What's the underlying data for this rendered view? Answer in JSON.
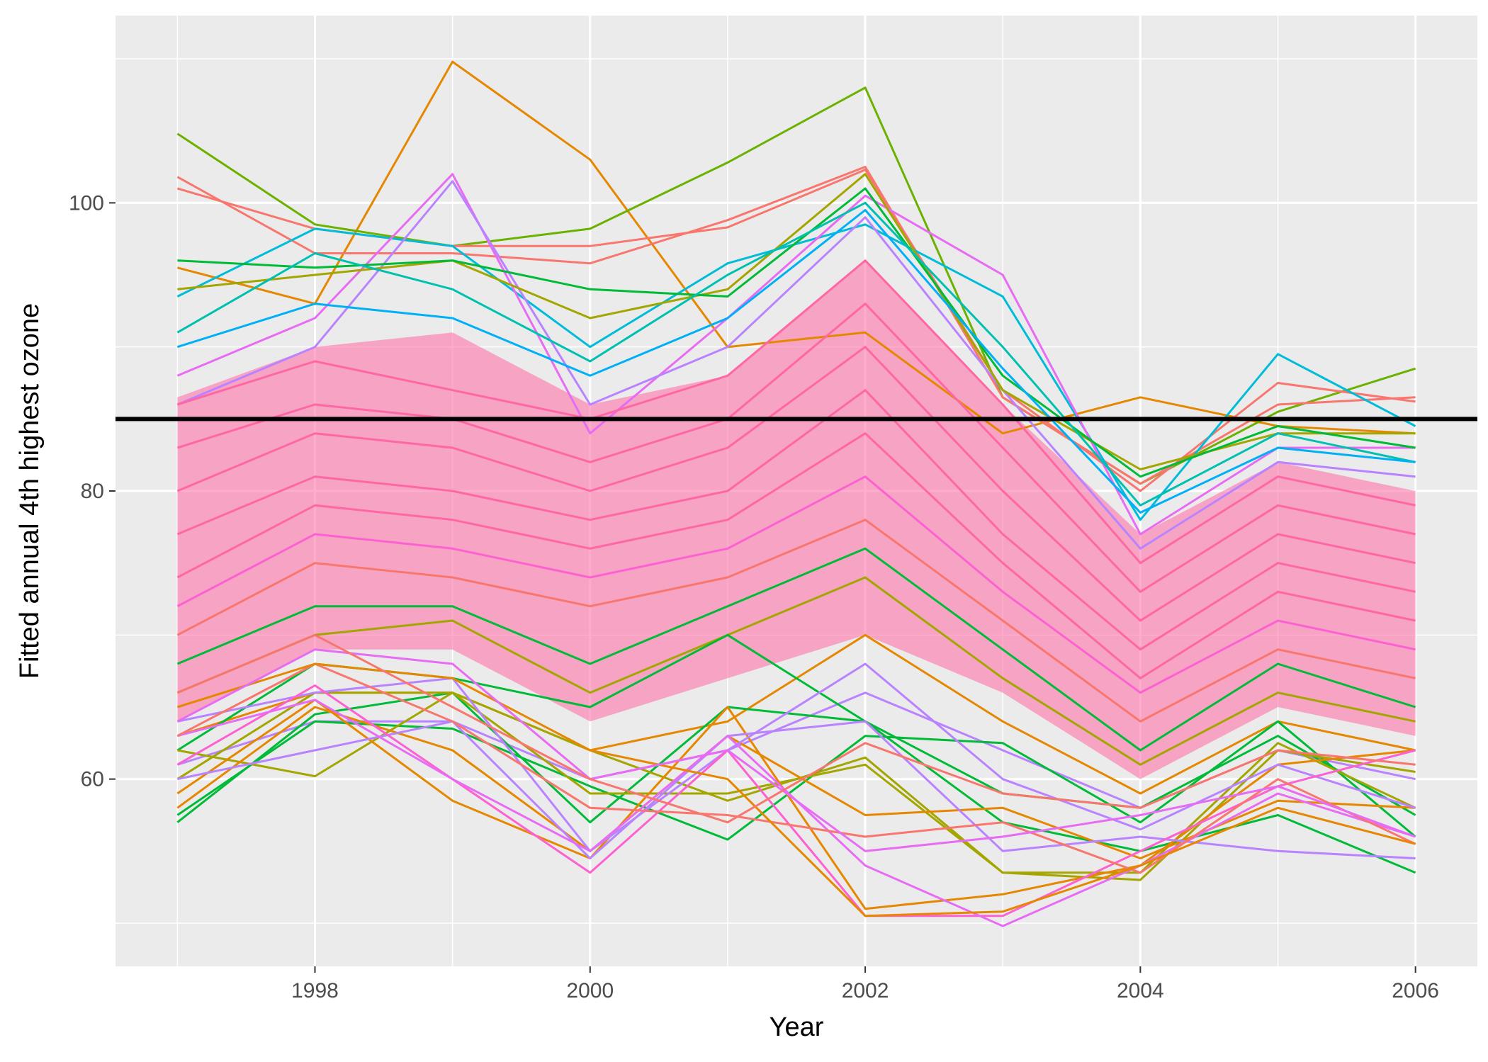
{
  "chart_data": {
    "type": "line",
    "title": "",
    "xlabel": "Year",
    "ylabel": "Fitted annual 4th highest ozone",
    "x": [
      1997,
      1998,
      1999,
      2000,
      2001,
      2002,
      2003,
      2004,
      2005,
      2006
    ],
    "xlim": [
      1996.55,
      2006.45
    ],
    "ylim": [
      47,
      113
    ],
    "x_ticks": [
      "1998",
      "2000",
      "2002",
      "2004",
      "2006"
    ],
    "y_ticks": [
      "60",
      "80",
      "100"
    ],
    "grid": true,
    "legend": "none",
    "reference_line": {
      "y": 85,
      "color": "#000000"
    },
    "colors": [
      "#F8766D",
      "#E58700",
      "#C99800",
      "#A3A500",
      "#6BB100",
      "#00BA38",
      "#00BF7D",
      "#00C0AF",
      "#00BCD8",
      "#00B0F6",
      "#619CFF",
      "#B983FF",
      "#E76BF3",
      "#FD61D1",
      "#FF67A4"
    ],
    "series": [
      {
        "color": "#E58700",
        "values": [
          95.5,
          93.0,
          109.8,
          103.0,
          90.0,
          91.0,
          84.0,
          86.5,
          84.5,
          84.0
        ]
      },
      {
        "color": "#6BB100",
        "values": [
          104.8,
          98.5,
          97.0,
          98.2,
          102.8,
          108.0,
          86.5,
          80.5,
          85.5,
          88.5
        ]
      },
      {
        "color": "#F8766D",
        "values": [
          101.0,
          98.2,
          97.0,
          97.0,
          98.3,
          102.3,
          87.0,
          80.0,
          87.5,
          86.2
        ]
      },
      {
        "color": "#F8766D",
        "values": [
          101.8,
          96.5,
          96.5,
          95.8,
          98.8,
          102.5,
          86.5,
          80.5,
          86.0,
          86.5
        ]
      },
      {
        "color": "#00BCD8",
        "values": [
          93.5,
          98.2,
          97.0,
          90.0,
          95.8,
          98.5,
          93.5,
          78.0,
          89.5,
          84.5
        ]
      },
      {
        "color": "#E76BF3",
        "values": [
          88.0,
          92.0,
          102.0,
          84.0,
          92.0,
          100.5,
          95.0,
          77.0,
          83.0,
          83.0
        ]
      },
      {
        "color": "#B983FF",
        "values": [
          86.0,
          90.0,
          101.5,
          86.0,
          90.0,
          99.0,
          87.0,
          76.0,
          82.0,
          81.0
        ]
      },
      {
        "color": "#A3A500",
        "values": [
          94.0,
          95.0,
          96.0,
          92.0,
          94.0,
          102.0,
          87.0,
          81.5,
          84.0,
          84.0
        ]
      },
      {
        "color": "#00BA38",
        "values": [
          96.0,
          95.5,
          96.0,
          94.0,
          93.5,
          101.0,
          88.0,
          81.0,
          84.5,
          83.0
        ]
      },
      {
        "color": "#00C0AF",
        "values": [
          91.0,
          96.5,
          94.0,
          89.0,
          95.0,
          100.0,
          90.0,
          79.0,
          84.0,
          82.0
        ]
      },
      {
        "color": "#00B0F6",
        "values": [
          90.0,
          93.0,
          92.0,
          88.0,
          92.0,
          99.5,
          88.5,
          78.5,
          83.0,
          82.0
        ]
      },
      {
        "color": "#FF67A4",
        "values": [
          86.0,
          89.0,
          87.0,
          85.0,
          88.0,
          96.0,
          86.0,
          75.0,
          81.0,
          79.0
        ]
      },
      {
        "color": "#FF67A4",
        "values": [
          83.0,
          86.0,
          85.0,
          82.0,
          85.0,
          93.0,
          83.0,
          73.0,
          79.0,
          77.0
        ]
      },
      {
        "color": "#FF67A4",
        "values": [
          80.0,
          84.0,
          83.0,
          80.0,
          83.0,
          90.0,
          80.0,
          71.0,
          77.0,
          75.0
        ]
      },
      {
        "color": "#FF67A4",
        "values": [
          77.0,
          81.0,
          80.0,
          78.0,
          80.0,
          87.0,
          77.0,
          69.0,
          75.0,
          73.0
        ]
      },
      {
        "color": "#FF67A4",
        "values": [
          74.0,
          79.0,
          78.0,
          76.0,
          78.0,
          84.0,
          75.0,
          67.0,
          73.0,
          71.0
        ]
      },
      {
        "color": "#FD61D1",
        "values": [
          72.0,
          77.0,
          76.0,
          74.0,
          76.0,
          81.0,
          73.0,
          66.0,
          71.0,
          69.0
        ]
      },
      {
        "color": "#F8766D",
        "values": [
          70.0,
          75.0,
          74.0,
          72.0,
          74.0,
          78.0,
          71.0,
          64.0,
          69.0,
          67.0
        ]
      },
      {
        "color": "#00BA38",
        "values": [
          68.0,
          72.0,
          72.0,
          68.0,
          72.0,
          76.0,
          69.0,
          62.0,
          68.0,
          65.0
        ]
      },
      {
        "color": "#A3A500",
        "values": [
          66.0,
          70.0,
          71.0,
          66.0,
          70.0,
          74.0,
          67.0,
          61.0,
          66.0,
          64.0
        ]
      },
      {
        "color": "#E58700",
        "values": [
          63.0,
          66.0,
          66.0,
          62.0,
          64.0,
          70.0,
          64.0,
          59.0,
          64.0,
          62.0
        ]
      },
      {
        "color": "#B983FF",
        "values": [
          61.0,
          64.0,
          64.0,
          60.0,
          62.0,
          66.0,
          62.0,
          58.0,
          62.0,
          60.0
        ]
      },
      {
        "color": "#00BA38",
        "values": [
          57.0,
          64.5,
          66.0,
          57.0,
          65.0,
          64.0,
          59.0,
          58.0,
          63.0,
          57.5
        ]
      },
      {
        "color": "#00BA38",
        "values": [
          57.5,
          64.0,
          63.5,
          59.5,
          55.8,
          63.0,
          62.5,
          57.0,
          64.0,
          56.0
        ]
      },
      {
        "color": "#00BA38",
        "values": [
          62.0,
          68.0,
          67.0,
          65.0,
          70.0,
          64.0,
          57.0,
          55.0,
          57.5,
          53.5
        ]
      },
      {
        "color": "#A3A500",
        "values": [
          62.0,
          60.2,
          66.0,
          59.0,
          59.0,
          61.0,
          53.5,
          53.0,
          62.0,
          60.5
        ]
      },
      {
        "color": "#A3A500",
        "values": [
          60.0,
          66.0,
          66.0,
          62.0,
          58.5,
          61.5,
          53.5,
          53.5,
          62.5,
          58.0
        ]
      },
      {
        "color": "#E58700",
        "values": [
          59.0,
          65.5,
          58.5,
          54.5,
          65.0,
          51.0,
          52.0,
          54.0,
          61.0,
          62.0
        ]
      },
      {
        "color": "#E58700",
        "values": [
          58.0,
          65.0,
          62.0,
          55.0,
          63.0,
          57.5,
          58.0,
          54.5,
          58.5,
          58.0
        ]
      },
      {
        "color": "#B983FF",
        "values": [
          60.0,
          62.0,
          64.0,
          54.5,
          63.0,
          64.0,
          55.0,
          56.0,
          55.0,
          54.5
        ]
      },
      {
        "color": "#B983FF",
        "values": [
          64.0,
          66.0,
          67.0,
          55.0,
          62.0,
          68.0,
          60.0,
          56.5,
          61.0,
          58.0
        ]
      },
      {
        "color": "#FD61D1",
        "values": [
          61.0,
          66.5,
          60.0,
          53.5,
          62.0,
          50.5,
          50.5,
          55.0,
          59.5,
          62.0
        ]
      },
      {
        "color": "#E76BF3",
        "values": [
          63.0,
          65.5,
          60.0,
          55.0,
          63.0,
          54.0,
          49.8,
          54.0,
          59.0,
          56.0
        ]
      },
      {
        "color": "#F8766D",
        "values": [
          63.0,
          68.0,
          64.0,
          58.0,
          57.5,
          56.0,
          57.0,
          53.5,
          60.0,
          55.5
        ]
      },
      {
        "color": "#E58700",
        "values": [
          65.0,
          68.0,
          67.0,
          62.0,
          60.0,
          50.5,
          50.8,
          54.0,
          58.0,
          55.5
        ]
      },
      {
        "color": "#E76BF3",
        "values": [
          64.0,
          69.0,
          68.0,
          60.0,
          62.0,
          55.0,
          56.0,
          57.5,
          59.5,
          56.0
        ]
      },
      {
        "color": "#F8766D",
        "values": [
          66.0,
          70.0,
          65.0,
          60.0,
          57.0,
          62.5,
          59.0,
          58.0,
          62.0,
          61.0
        ]
      }
    ]
  }
}
